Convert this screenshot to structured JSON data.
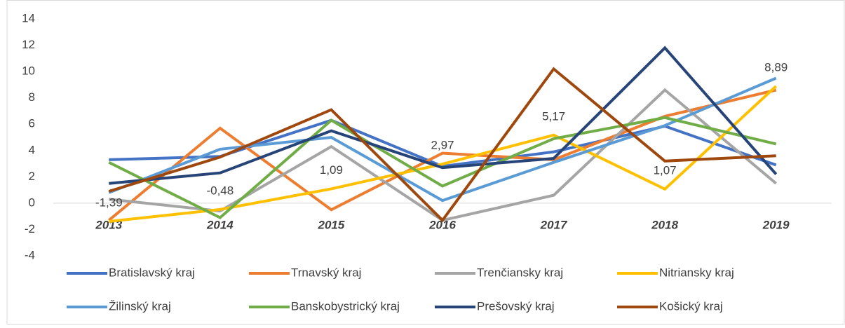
{
  "chart_data": {
    "type": "line",
    "categories": [
      "2013",
      "2014",
      "2015",
      "2016",
      "2017",
      "2018",
      "2019"
    ],
    "series": [
      {
        "name": "Bratislavský kraj",
        "color": "#4472c4",
        "values": [
          3.3,
          3.55,
          6.3,
          2.8,
          3.9,
          5.85,
          2.9
        ]
      },
      {
        "name": "Trnavský kraj",
        "color": "#ed7d31",
        "values": [
          -1.3,
          5.7,
          -0.5,
          3.8,
          3.3,
          6.6,
          8.6
        ]
      },
      {
        "name": "Trenčiansky kraj",
        "color": "#a5a5a5",
        "values": [
          0.3,
          -0.6,
          4.3,
          -1.3,
          0.6,
          8.6,
          1.5
        ]
      },
      {
        "name": "Nitriansky kraj",
        "color": "#ffc000",
        "values": [
          -1.39,
          -0.48,
          1.09,
          2.97,
          5.17,
          1.07,
          8.89
        ],
        "value_labels": [
          "-1,39",
          "-0,48",
          "1,09",
          "2,97",
          "5,17",
          "1,07",
          "8,89"
        ]
      },
      {
        "name": "Žilinský kraj",
        "color": "#5b9bd5",
        "values": [
          0.8,
          4.1,
          5.0,
          0.2,
          3.1,
          5.9,
          9.5
        ]
      },
      {
        "name": "Banskobystrický kraj",
        "color": "#70ad47",
        "values": [
          3.1,
          -1.1,
          6.3,
          1.3,
          4.9,
          6.5,
          4.5
        ]
      },
      {
        "name": "Prešovský kraj",
        "color": "#264478",
        "values": [
          1.5,
          2.3,
          5.5,
          2.7,
          3.4,
          11.8,
          2.2
        ]
      },
      {
        "name": "Košický kraj",
        "color": "#9e480e",
        "values": [
          0.9,
          3.5,
          7.1,
          -1.3,
          10.2,
          3.2,
          3.6
        ]
      }
    ],
    "ylim": [
      -4,
      14
    ],
    "yticks": [
      -4,
      -2,
      0,
      2,
      4,
      6,
      8,
      10,
      12,
      14
    ],
    "grid": false,
    "legend": "bottom"
  }
}
